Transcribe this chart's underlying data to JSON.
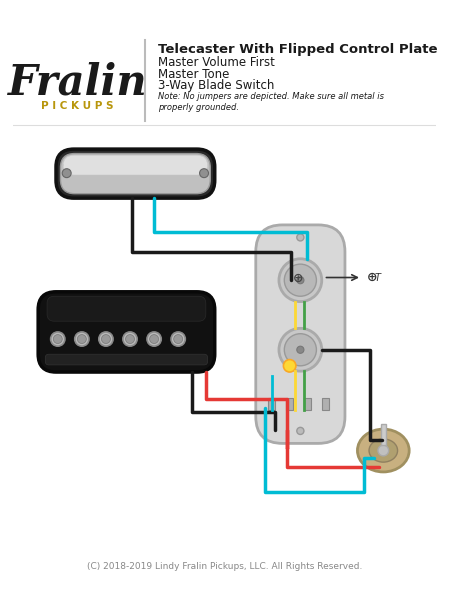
{
  "title": "Telecaster With Flipped Control Plate",
  "subtitle_lines": [
    "Master Volume First",
    "Master Tone",
    "3-Way Blade Switch"
  ],
  "note": "Note: No jumpers are depicted. Make sure all metal is\nproperly grounded.",
  "copyright": "(C) 2018-2019 Lindy Fralin Pickups, LLC. All Rights Reserved.",
  "bg_color": "#ffffff",
  "fralin_text": "Fralin",
  "pickups_text": "P I C K U P S",
  "fralin_color": "#1a1a1a",
  "pickups_color": "#b8960c",
  "title_color": "#1a1a1a",
  "note_color": "#1a1a1a",
  "copyright_color": "#888888",
  "divider_color": "#bbbbbb",
  "wire_cyan": "#00bcd4",
  "wire_black": "#1a1a1a",
  "wire_red": "#e53935",
  "wire_yellow": "#fdd835",
  "wire_green": "#43a047",
  "plate_color": "#d8d8d8",
  "plate_edge": "#aaaaaa",
  "switch_body": "#c8b080"
}
